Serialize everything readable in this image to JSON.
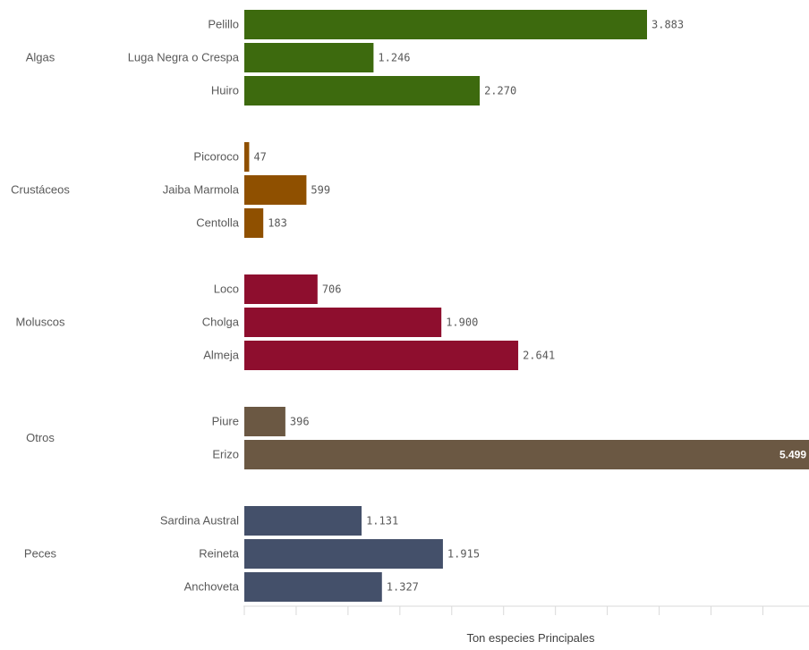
{
  "chart_data": {
    "type": "bar",
    "orientation": "horizontal",
    "xlabel": "Ton especies Principales",
    "xlim": [
      0,
      5500
    ],
    "grid": false,
    "groups": [
      {
        "name": "Algas",
        "color": "#3d6a0e",
        "items": [
          {
            "category": "Pelillo",
            "value": 3883,
            "label": "3.883"
          },
          {
            "category": "Luga Negra o Crespa",
            "value": 1246,
            "label": "1.246"
          },
          {
            "category": "Huiro",
            "value": 2270,
            "label": "2.270"
          }
        ]
      },
      {
        "name": "Crustáceos",
        "color": "#8f5000",
        "items": [
          {
            "category": "Picoroco",
            "value": 47,
            "label": "47"
          },
          {
            "category": "Jaiba Marmola",
            "value": 599,
            "label": "599"
          },
          {
            "category": "Centolla",
            "value": 183,
            "label": "183"
          }
        ]
      },
      {
        "name": "Moluscos",
        "color": "#8e0e2e",
        "items": [
          {
            "category": "Loco",
            "value": 706,
            "label": "706"
          },
          {
            "category": "Cholga",
            "value": 1900,
            "label": "1.900"
          },
          {
            "category": "Almeja",
            "value": 2641,
            "label": "2.641"
          }
        ]
      },
      {
        "name": "Otros",
        "color": "#6b5843",
        "items": [
          {
            "category": "Piure",
            "value": 396,
            "label": "396"
          },
          {
            "category": "Erizo",
            "value": 5499,
            "label": "5.499"
          }
        ]
      },
      {
        "name": "Peces",
        "color": "#44506a",
        "items": [
          {
            "category": "Sardina Austral",
            "value": 1131,
            "label": "1.131"
          },
          {
            "category": "Reineta",
            "value": 1915,
            "label": "1.915"
          },
          {
            "category": "Anchoveta",
            "value": 1327,
            "label": "1.327"
          }
        ]
      }
    ]
  }
}
